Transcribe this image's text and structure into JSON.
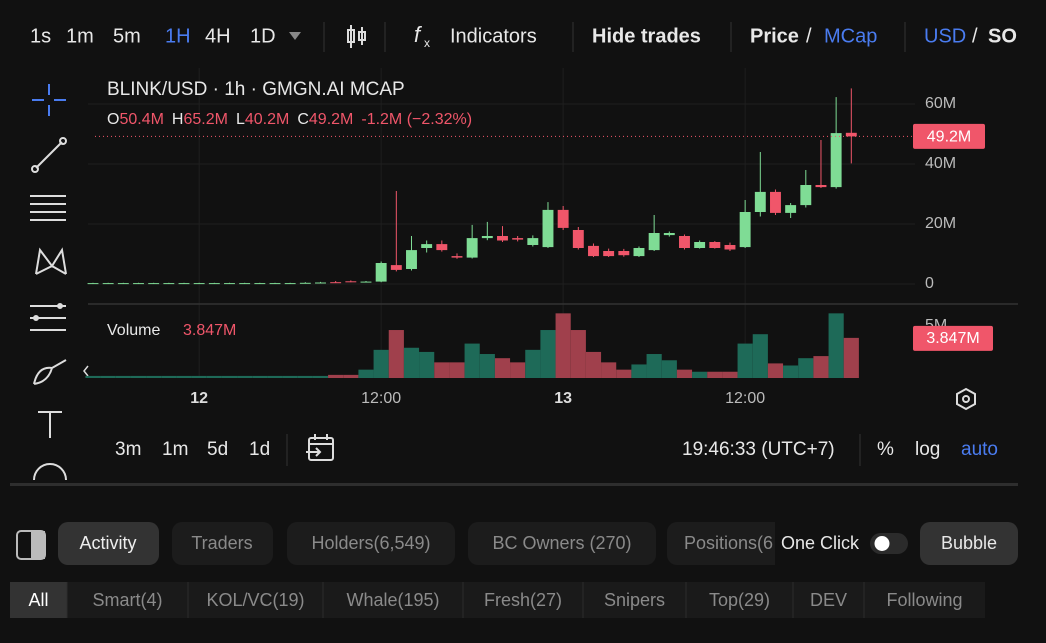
{
  "toolbar": {
    "intervals": [
      "1s",
      "1m",
      "5m",
      "1H",
      "4H",
      "1D"
    ],
    "indicators": "Indicators",
    "hide_trades": "Hide trades",
    "price": "Price",
    "price_sep": "/",
    "mcap": "MCap",
    "usd": "USD",
    "currency_sep": "/",
    "so": "SO"
  },
  "chart": {
    "type": "candlestick",
    "title": "BLINK/USD · 1h · GMGN.AI MCAP",
    "legend": [
      "O",
      "50.4M",
      "H",
      "65.2M",
      "L",
      "40.2M",
      "C",
      "49.2M",
      "-1.2M (−2.32%)"
    ],
    "up_color": "#7fdc95",
    "down_color": "#f0566a",
    "volume_up_color": "#1e6a58",
    "volume_down_color": "#a0404c",
    "ohlc": [
      [
        0.3,
        0.4,
        0.2,
        0.3
      ],
      [
        0.3,
        0.4,
        0.2,
        0.3
      ],
      [
        0.3,
        0.4,
        0.2,
        0.3
      ],
      [
        0.3,
        0.4,
        0.2,
        0.3
      ],
      [
        0.3,
        0.4,
        0.2,
        0.3
      ],
      [
        0.3,
        0.4,
        0.2,
        0.3
      ],
      [
        0.3,
        0.4,
        0.2,
        0.3
      ],
      [
        0.3,
        0.4,
        0.2,
        0.3
      ],
      [
        0.3,
        0.4,
        0.2,
        0.3
      ],
      [
        0.3,
        0.4,
        0.2,
        0.3
      ],
      [
        0.3,
        0.4,
        0.2,
        0.3
      ],
      [
        0.3,
        0.4,
        0.2,
        0.3
      ],
      [
        0.3,
        0.4,
        0.2,
        0.3
      ],
      [
        0.3,
        0.4,
        0.2,
        0.3
      ],
      [
        0.3,
        0.6,
        0.2,
        0.4
      ],
      [
        0.4,
        0.7,
        0.3,
        0.5
      ],
      [
        0.6,
        1.0,
        0.4,
        0.5
      ],
      [
        0.9,
        1.2,
        0.6,
        0.7
      ],
      [
        0.7,
        1.0,
        0.5,
        0.8
      ],
      [
        0.8,
        7.5,
        0.6,
        7.0
      ],
      [
        6.3,
        31,
        4.2,
        4.7
      ],
      [
        5.0,
        16,
        4.5,
        11.3
      ],
      [
        12,
        14.5,
        10.5,
        13.3
      ],
      [
        13.3,
        14.5,
        10.8,
        11.3
      ],
      [
        9.3,
        10.2,
        8.4,
        8.8
      ],
      [
        8.8,
        19.7,
        8.5,
        15.3
      ],
      [
        15.3,
        20.7,
        14.6,
        16.0
      ],
      [
        16.0,
        19.3,
        14.0,
        14.5
      ],
      [
        15.3,
        16.0,
        14.2,
        14.8
      ],
      [
        13.0,
        16.2,
        12.5,
        15.3
      ],
      [
        12.3,
        27.3,
        12.0,
        24.7
      ],
      [
        24.7,
        26.0,
        18.0,
        18.7
      ],
      [
        18.0,
        19.0,
        11.5,
        12.0
      ],
      [
        12.7,
        13.5,
        9.0,
        9.3
      ],
      [
        11.0,
        11.8,
        9.0,
        9.3
      ],
      [
        11.0,
        11.7,
        9.1,
        9.6
      ],
      [
        9.3,
        12.5,
        9.0,
        12.0
      ],
      [
        11.3,
        23.0,
        11.0,
        17.0
      ],
      [
        16.3,
        17.5,
        15.8,
        17.0
      ],
      [
        16.0,
        16.5,
        11.5,
        12.0
      ],
      [
        12.0,
        14.5,
        11.8,
        14.0
      ],
      [
        14.0,
        14.3,
        11.8,
        12.0
      ],
      [
        13.0,
        13.8,
        11.0,
        11.5
      ],
      [
        12.3,
        28.0,
        12.0,
        24.0
      ],
      [
        24.0,
        44.0,
        22.5,
        30.7
      ],
      [
        30.7,
        31.5,
        23.0,
        23.7
      ],
      [
        23.7,
        27.0,
        22.0,
        26.3
      ],
      [
        26.3,
        38.0,
        25.5,
        33.0
      ],
      [
        33.0,
        48.0,
        32.0,
        32.3
      ],
      [
        32.3,
        62.3,
        31.8,
        50.3
      ],
      [
        50.4,
        65.2,
        40.2,
        49.2
      ]
    ],
    "volume_title": "Volume",
    "volume_label": "3.847M",
    "volumes": [
      0.2,
      0.2,
      0.2,
      0.2,
      0.2,
      0.2,
      0.2,
      0.2,
      0.2,
      0.2,
      0.2,
      0.2,
      0.2,
      0.2,
      0.2,
      0.2,
      0.3,
      0.3,
      0.8,
      2.7,
      4.6,
      2.9,
      2.5,
      1.5,
      1.5,
      3.3,
      2.3,
      1.9,
      1.5,
      2.7,
      4.6,
      6.2,
      4.6,
      2.5,
      1.5,
      0.8,
      1.3,
      2.3,
      1.7,
      0.8,
      0.6,
      0.6,
      0.6,
      3.3,
      4.2,
      1.4,
      1.2,
      1.9,
      2.1,
      6.2,
      3.847
    ],
    "xlim": [
      -0.33,
      54.2
    ],
    "xticks": [
      {
        "value": 7,
        "label": "12"
      },
      {
        "value": 19,
        "label": "12:00"
      },
      {
        "value": 31,
        "label": "13"
      },
      {
        "value": 43,
        "label": "12:00"
      }
    ],
    "ylim": [
      -5,
      72
    ],
    "yticks": [
      0,
      {
        "value": 20,
        "label": "20M"
      },
      {
        "value": 40,
        "label": "40M"
      },
      {
        "value": 60,
        "label": "60M"
      }
    ],
    "volume_ylim": [
      0,
      7
    ],
    "volume_yticks": [
      {
        "value": 5,
        "label": "5M"
      }
    ],
    "grid": true
  },
  "bottom_bar": {
    "ranges": [
      "3m",
      "1m",
      "5d",
      "1d"
    ],
    "time": "19:46:33 (UTC+7)",
    "percent": "%",
    "log": "log",
    "auto": "auto"
  },
  "tabs": [
    "Activity",
    "Traders",
    "Holders(6,549)",
    "BC Owners (270)",
    "Positions(6"
  ],
  "one_click": "One Click",
  "bubble": "Bubble",
  "filters": [
    "All",
    "Smart(4)",
    "KOL/VC(19)",
    "Whale(195)",
    "Fresh(27)",
    "Snipers",
    "Top(29)",
    "DEV",
    "Following"
  ]
}
